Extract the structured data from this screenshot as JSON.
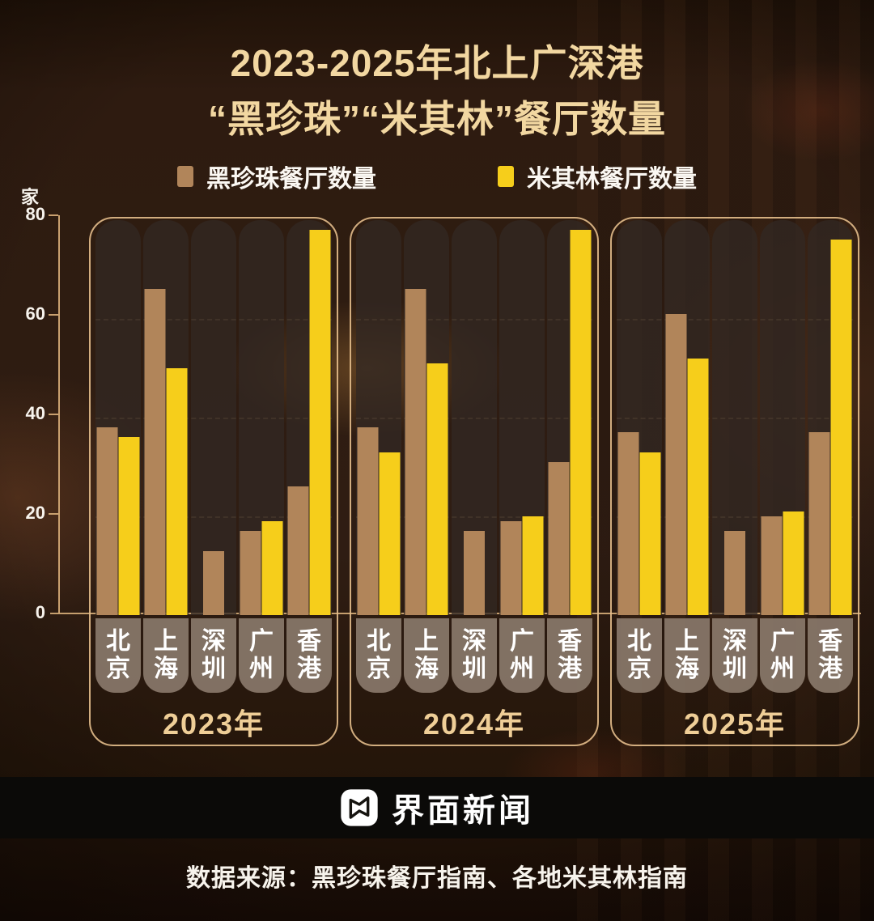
{
  "title": {
    "line1": "2023-2025年北上广深港",
    "line2": "“黑珍珠”“米其林”餐厅数量"
  },
  "legend": [
    {
      "label": "黑珍珠餐厅数量",
      "color": "#B1855A"
    },
    {
      "label": "米其林餐厅数量",
      "color": "#F6CE1B"
    }
  ],
  "y_axis": {
    "unit": "家",
    "ticks": [
      "80",
      "60",
      "40",
      "20",
      "0"
    ]
  },
  "chart_data": {
    "type": "bar",
    "title": "2023-2025年北上广深港“黑珍珠”“米其林”餐厅数量",
    "ylabel": "家",
    "ylim": [
      0,
      80
    ],
    "yticks": [
      0,
      20,
      40,
      60,
      80
    ],
    "gridlines": [
      60,
      40,
      20
    ],
    "grid": "dashed horizontal inside each year group",
    "legend_position": "top-center",
    "series": [
      {
        "name": "黑珍珠餐厅数量",
        "color": "#B1855A"
      },
      {
        "name": "米其林餐厅数量",
        "color": "#F6CE1B"
      }
    ],
    "groups": [
      {
        "year": "2023年",
        "cities": [
          "北京",
          "上海",
          "深圳",
          "广州",
          "香港"
        ],
        "black_pearl": [
          38,
          66,
          13,
          17,
          26
        ],
        "michelin": [
          36,
          50,
          null,
          19,
          78
        ]
      },
      {
        "year": "2024年",
        "cities": [
          "北京",
          "上海",
          "深圳",
          "广州",
          "香港"
        ],
        "black_pearl": [
          38,
          66,
          17,
          19,
          31
        ],
        "michelin": [
          33,
          51,
          null,
          20,
          78
        ]
      },
      {
        "year": "2025年",
        "cities": [
          "北京",
          "上海",
          "深圳",
          "广州",
          "香港"
        ],
        "black_pearl": [
          37,
          61,
          17,
          20,
          37
        ],
        "michelin": [
          33,
          52,
          null,
          21,
          76
        ]
      }
    ]
  },
  "footer": {
    "brand": "界面新闻",
    "source": "数据来源：黑珍珠餐厅指南、各地米其林指南"
  }
}
